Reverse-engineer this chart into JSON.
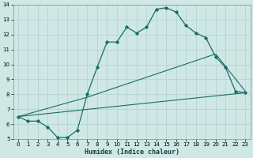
{
  "xlabel": "Humidex (Indice chaleur)",
  "xlim": [
    -0.5,
    23.5
  ],
  "ylim": [
    5,
    14
  ],
  "xticks": [
    0,
    1,
    2,
    3,
    4,
    5,
    6,
    7,
    8,
    9,
    10,
    11,
    12,
    13,
    14,
    15,
    16,
    17,
    18,
    19,
    20,
    21,
    22,
    23
  ],
  "yticks": [
    5,
    6,
    7,
    8,
    9,
    10,
    11,
    12,
    13,
    14
  ],
  "bg_color": "#cfe8e5",
  "grid_color": "#b0d0cc",
  "line_color": "#1a6b6b",
  "line1_x": [
    0,
    1,
    2,
    3,
    4,
    5,
    6,
    7,
    8,
    9,
    10,
    11,
    12,
    13,
    14,
    15,
    16,
    17,
    18,
    19,
    20,
    21,
    22,
    23
  ],
  "line1_y": [
    6.5,
    6.2,
    6.2,
    5.8,
    5.1,
    5.1,
    5.6,
    8.0,
    9.8,
    11.5,
    11.5,
    12.5,
    12.1,
    12.5,
    13.7,
    13.8,
    13.5,
    12.6,
    12.1,
    11.8,
    10.5,
    9.8,
    8.2,
    8.1
  ],
  "line2_x": [
    0,
    23
  ],
  "line2_y": [
    6.5,
    8.1
  ],
  "line3_x": [
    0,
    7,
    20,
    23
  ],
  "line3_y": [
    6.5,
    7.8,
    10.7,
    8.2
  ]
}
